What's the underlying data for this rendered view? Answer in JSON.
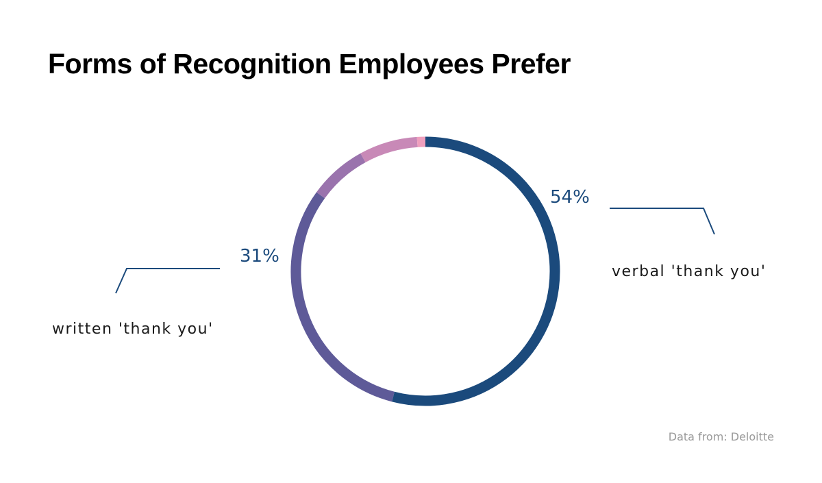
{
  "title": "Forms of Recognition Employees Prefer",
  "source": "Data from: Deloitte",
  "chart_data": {
    "type": "pie",
    "title": "Forms of Recognition Employees Prefer",
    "slices": [
      {
        "label": "verbal 'thank you'",
        "value": 54,
        "value_label": "54%",
        "color": "#1b4a7c"
      },
      {
        "label": "written 'thank you'",
        "value": 31,
        "value_label": "31%",
        "color": "#5e5a98"
      },
      {
        "label": "",
        "value": 7,
        "color": "#9a73ad"
      },
      {
        "label": "",
        "value": 7,
        "color": "#c889b7"
      },
      {
        "label": "",
        "value": 1,
        "color": "#ef9fbd"
      }
    ],
    "donut": true
  }
}
